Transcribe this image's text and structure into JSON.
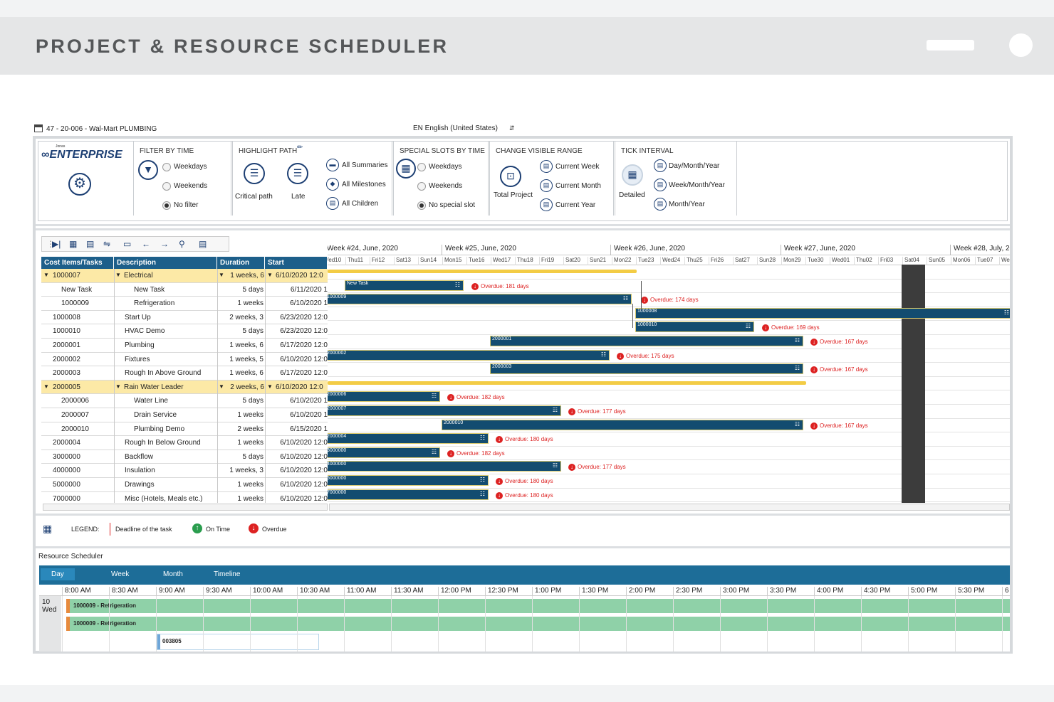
{
  "banner": {
    "title": "PROJECT & RESOURCE SCHEDULER"
  },
  "window": {
    "title": "47 - 20-006 - Wal-Mart PLUMBING",
    "language": "EN English (United States)"
  },
  "ribbon": {
    "logo_small": "Jonas",
    "logo": "ENTERPRISE",
    "filter_by_time": {
      "title": "FILTER BY TIME",
      "options": [
        "Weekdays",
        "Weekends",
        "No filter"
      ],
      "selected": "No filter"
    },
    "highlight_path": {
      "title": "HIGHLIGHT PATH",
      "critical_label": "Critical path",
      "late_label": "Late",
      "all_summaries": "All Summaries",
      "all_milestones": "All Milestones",
      "all_children": "All Children"
    },
    "special_slots": {
      "title": "SPECIAL SLOTS BY TIME",
      "options": [
        "Weekdays",
        "Weekends",
        "No special slot"
      ],
      "selected": "No special slot"
    },
    "visible_range": {
      "title": "CHANGE VISIBLE RANGE",
      "total_label": "Total Project",
      "current_week": "Current Week",
      "current_month": "Current Month",
      "current_year": "Current Year"
    },
    "tick_interval": {
      "title": "TICK INTERVAL",
      "detailed": "Detailed",
      "day_month_year": "Day/Month/Year",
      "week_month_year": "Week/Month/Year",
      "month_year": "Month/Year"
    }
  },
  "grid": {
    "columns": [
      "Cost Items/Tasks",
      "Description",
      "Duration",
      "Start"
    ],
    "rows": [
      {
        "id": "1000007",
        "desc": "Electrical",
        "duration": "1 weeks, 6",
        "start": "6/10/2020 12:0",
        "summary": true
      },
      {
        "id": "New Task",
        "desc": "New Task",
        "duration": "5 days",
        "start": "6/11/2020 1",
        "child": true
      },
      {
        "id": "1000009",
        "desc": "Refrigeration",
        "duration": "1 weeks",
        "start": "6/10/2020 1",
        "child": true
      },
      {
        "id": "1000008",
        "desc": "Start Up",
        "duration": "2 weeks, 3",
        "start": "6/23/2020 12:0"
      },
      {
        "id": "1000010",
        "desc": "HVAC Demo",
        "duration": "5 days",
        "start": "6/23/2020 12:0"
      },
      {
        "id": "2000001",
        "desc": "Plumbing",
        "duration": "1 weeks, 6",
        "start": "6/17/2020 12:0"
      },
      {
        "id": "2000002",
        "desc": "Fixtures",
        "duration": "1 weeks, 5",
        "start": "6/10/2020 12:0"
      },
      {
        "id": "2000003",
        "desc": "Rough In Above Ground",
        "duration": "1 weeks, 6",
        "start": "6/17/2020 12:0"
      },
      {
        "id": "2000005",
        "desc": "Rain Water Leader",
        "duration": "2 weeks, 6",
        "start": "6/10/2020 12:0",
        "summary": true
      },
      {
        "id": "2000006",
        "desc": "Water Line",
        "duration": "5 days",
        "start": "6/10/2020 1",
        "child": true
      },
      {
        "id": "2000007",
        "desc": "Drain Service",
        "duration": "1 weeks",
        "start": "6/10/2020 1",
        "child": true
      },
      {
        "id": "2000010",
        "desc": "Plumbing Demo",
        "duration": "2 weeks",
        "start": "6/15/2020 1",
        "child": true
      },
      {
        "id": "2000004",
        "desc": "Rough In Below Ground",
        "duration": "1 weeks",
        "start": "6/10/2020 12:0"
      },
      {
        "id": "3000000",
        "desc": "Backflow",
        "duration": "5 days",
        "start": "6/10/2020 12:0"
      },
      {
        "id": "4000000",
        "desc": "Insulation",
        "duration": "1 weeks, 3",
        "start": "6/10/2020 12:0"
      },
      {
        "id": "5000000",
        "desc": "Drawings",
        "duration": "1 weeks",
        "start": "6/10/2020 12:0"
      },
      {
        "id": "7000000",
        "desc": "Misc (Hotels, Meals etc.)",
        "duration": "1 weeks",
        "start": "6/10/2020 12:0"
      }
    ]
  },
  "gantt": {
    "weeks": [
      "Week #24, June, 2020",
      "Week #25, June, 2020",
      "Week #26, June, 2020",
      "Week #27, June, 2020",
      "Week #28, July, 2020"
    ],
    "days": [
      "Wed10",
      "Thu11",
      "Fri12",
      "Sat13",
      "Sun14",
      "Mon15",
      "Tue16",
      "Wed17",
      "Thu18",
      "Fri19",
      "Sat20",
      "Sun21",
      "Mon22",
      "Tue23",
      "Wed24",
      "Thu25",
      "Fri26",
      "Sat27",
      "Sun28",
      "Mon29",
      "Tue30",
      "Wed01",
      "Thu02",
      "Fri03",
      "Sat04",
      "Sun05",
      "Mon06",
      "Tue07",
      "We"
    ],
    "bar_labels": [
      "New Task",
      "1000009",
      "1000008",
      "1000010",
      "2000001",
      "2000002",
      "2000003",
      "2000006",
      "2000007",
      "2000010",
      "2000004",
      "3000000",
      "4000000",
      "5000000",
      "7000000"
    ],
    "overdue": [
      "Overdue: 181 days",
      "Overdue: 174 days",
      "Overdue: 169 days",
      "Overdue: 167 days",
      "Overdue: 175 days",
      "Overdue: 167 days",
      "Overdue: 182 days",
      "Overdue: 177 days",
      "Overdue: 167 days",
      "Overdue: 180 days",
      "Overdue: 182 days",
      "Overdue: 177 days",
      "Overdue: 180 days",
      "Overdue: 180 days"
    ]
  },
  "legend": {
    "label": "LEGEND:",
    "deadline": "Deadline of the task",
    "on_time": "On Time",
    "overdue": "Overdue"
  },
  "resource_scheduler": {
    "title": "Resource Scheduler",
    "tabs": [
      "Day",
      "Week",
      "Month",
      "Timeline"
    ],
    "active_tab": "Day",
    "times": [
      "8:00 AM",
      "8:30 AM",
      "9:00 AM",
      "9:30 AM",
      "10:00 AM",
      "10:30 AM",
      "11:00 AM",
      "11:30 AM",
      "12:00 PM",
      "12:30 PM",
      "1:00 PM",
      "1:30 PM",
      "2:00 PM",
      "2:30 PM",
      "3:00 PM",
      "3:30 PM",
      "4:00 PM",
      "4:30 PM",
      "5:00 PM",
      "5:30 PM",
      "6"
    ],
    "date_num": "10",
    "date_day": "Wed",
    "bookings": [
      "1000009 - Refrigeration",
      "1000009 - Refrigeration"
    ],
    "selected_item": "003805"
  },
  "colors": {
    "bar": "#134c70",
    "summary": "#f3cc45",
    "overdue": "#dd2222",
    "header": "#1d5f8a",
    "booking": "#8fd1a8"
  }
}
